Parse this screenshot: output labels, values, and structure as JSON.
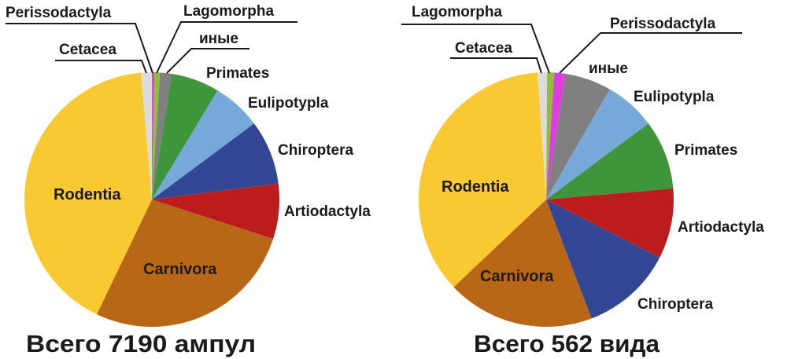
{
  "chart_data": [
    {
      "type": "pie",
      "title": "Всего 7190 ампул",
      "total": 7190,
      "unit": "ампул",
      "start_angle_deg": -5,
      "direction": "clockwise",
      "slices": [
        {
          "name": "Cetacea",
          "percent": 1.4,
          "color": "#DCDCDC"
        },
        {
          "name": "Perissodactyla",
          "percent": 0.3,
          "color": "#DD3EDD"
        },
        {
          "name": "Lagomorpha",
          "percent": 0.7,
          "color": "#90BE3A"
        },
        {
          "name": "иные",
          "percent": 1.5,
          "color": "#808080"
        },
        {
          "name": "Primates",
          "percent": 6.1,
          "color": "#3E953A"
        },
        {
          "name": "Eulipotypla",
          "percent": 6.2,
          "color": "#76A9D9"
        },
        {
          "name": "Chiroptera",
          "percent": 8.2,
          "color": "#324694"
        },
        {
          "name": "Artiodactyla",
          "percent": 7.0,
          "color": "#BC1C1C"
        },
        {
          "name": "Carnivora",
          "percent": 27.1,
          "color": "#B86717"
        },
        {
          "name": "Rodentia",
          "percent": 41.5,
          "color": "#F9C932"
        }
      ]
    },
    {
      "type": "pie",
      "title": "Всего 562 вида",
      "total": 562,
      "unit": "вида",
      "start_angle_deg": -3.9,
      "direction": "clockwise",
      "slices": [
        {
          "name": "Cetacea",
          "percent": 1.2,
          "color": "#DCDCDC"
        },
        {
          "name": "Lagomorpha",
          "percent": 0.9,
          "color": "#90BE3A"
        },
        {
          "name": "Perissodactyla",
          "percent": 1.4,
          "color": "#DD3EDD"
        },
        {
          "name": "иные",
          "percent": 5.9,
          "color": "#808080"
        },
        {
          "name": "Eulipotypla",
          "percent": 6.5,
          "color": "#76A9D9"
        },
        {
          "name": "Primates",
          "percent": 8.8,
          "color": "#3E953A"
        },
        {
          "name": "Artiodactyla",
          "percent": 8.9,
          "color": "#BC1C1C"
        },
        {
          "name": "Chiroptera",
          "percent": 11.7,
          "color": "#324694"
        },
        {
          "name": "Carnivora",
          "percent": 18.7,
          "color": "#B86717"
        },
        {
          "name": "Rodentia",
          "percent": 36.0,
          "color": "#F9C932"
        }
      ]
    }
  ],
  "charts": [
    {
      "caption": "Всего 7190 ампул",
      "labels": {
        "perissodactyla": "Perissodactyla",
        "lagomorpha": "Lagomorpha",
        "cetacea": "Cetacea",
        "others": "иные",
        "primates": "Primates",
        "eulipotypla": "Eulipotypla",
        "chiroptera": "Chiroptera",
        "artiodactyla": "Artiodactyla",
        "rodentia": "Rodentia",
        "carnivora": "Carnivora"
      }
    },
    {
      "caption": "Всего 562 вида",
      "labels": {
        "lagomorpha": "Lagomorpha",
        "perissodactyla": "Perissodactyla",
        "cetacea": "Cetacea",
        "others": "иные",
        "eulipotypla": "Eulipotypla",
        "primates": "Primates",
        "artiodactyla": "Artiodactyla",
        "chiroptera": "Chiroptera",
        "rodentia": "Rodentia",
        "carnivora": "Carnivora"
      }
    }
  ]
}
